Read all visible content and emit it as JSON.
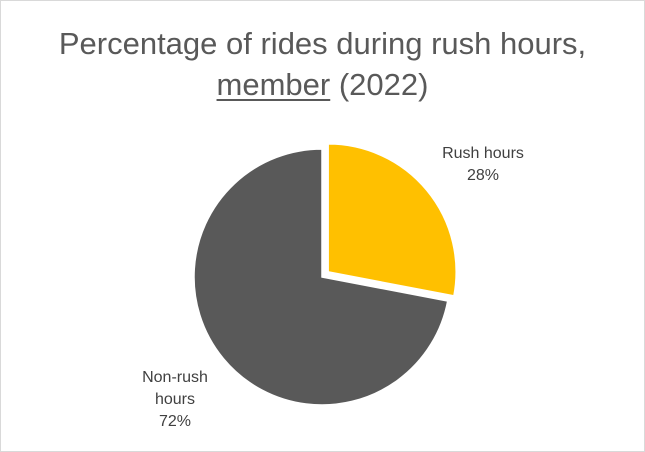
{
  "chart_data": {
    "type": "pie",
    "title": {
      "line1": "Percentage of rides during rush hours,",
      "line2_underlined": "member",
      "line2_rest": " (2022)"
    },
    "slices": [
      {
        "name": "Rush hours",
        "value": 28,
        "label_lines": [
          "Rush hours",
          "28%"
        ],
        "color": "#FFC000",
        "exploded": true
      },
      {
        "name": "Non-rush hours",
        "value": 72,
        "label_lines": [
          "Non-rush",
          "hours",
          "72%"
        ],
        "color": "#595959",
        "exploded": false
      }
    ]
  },
  "colors": {
    "title": "#595959",
    "labels": "#404040",
    "background": "#FFFFFF",
    "border": "#D9D9D9"
  }
}
